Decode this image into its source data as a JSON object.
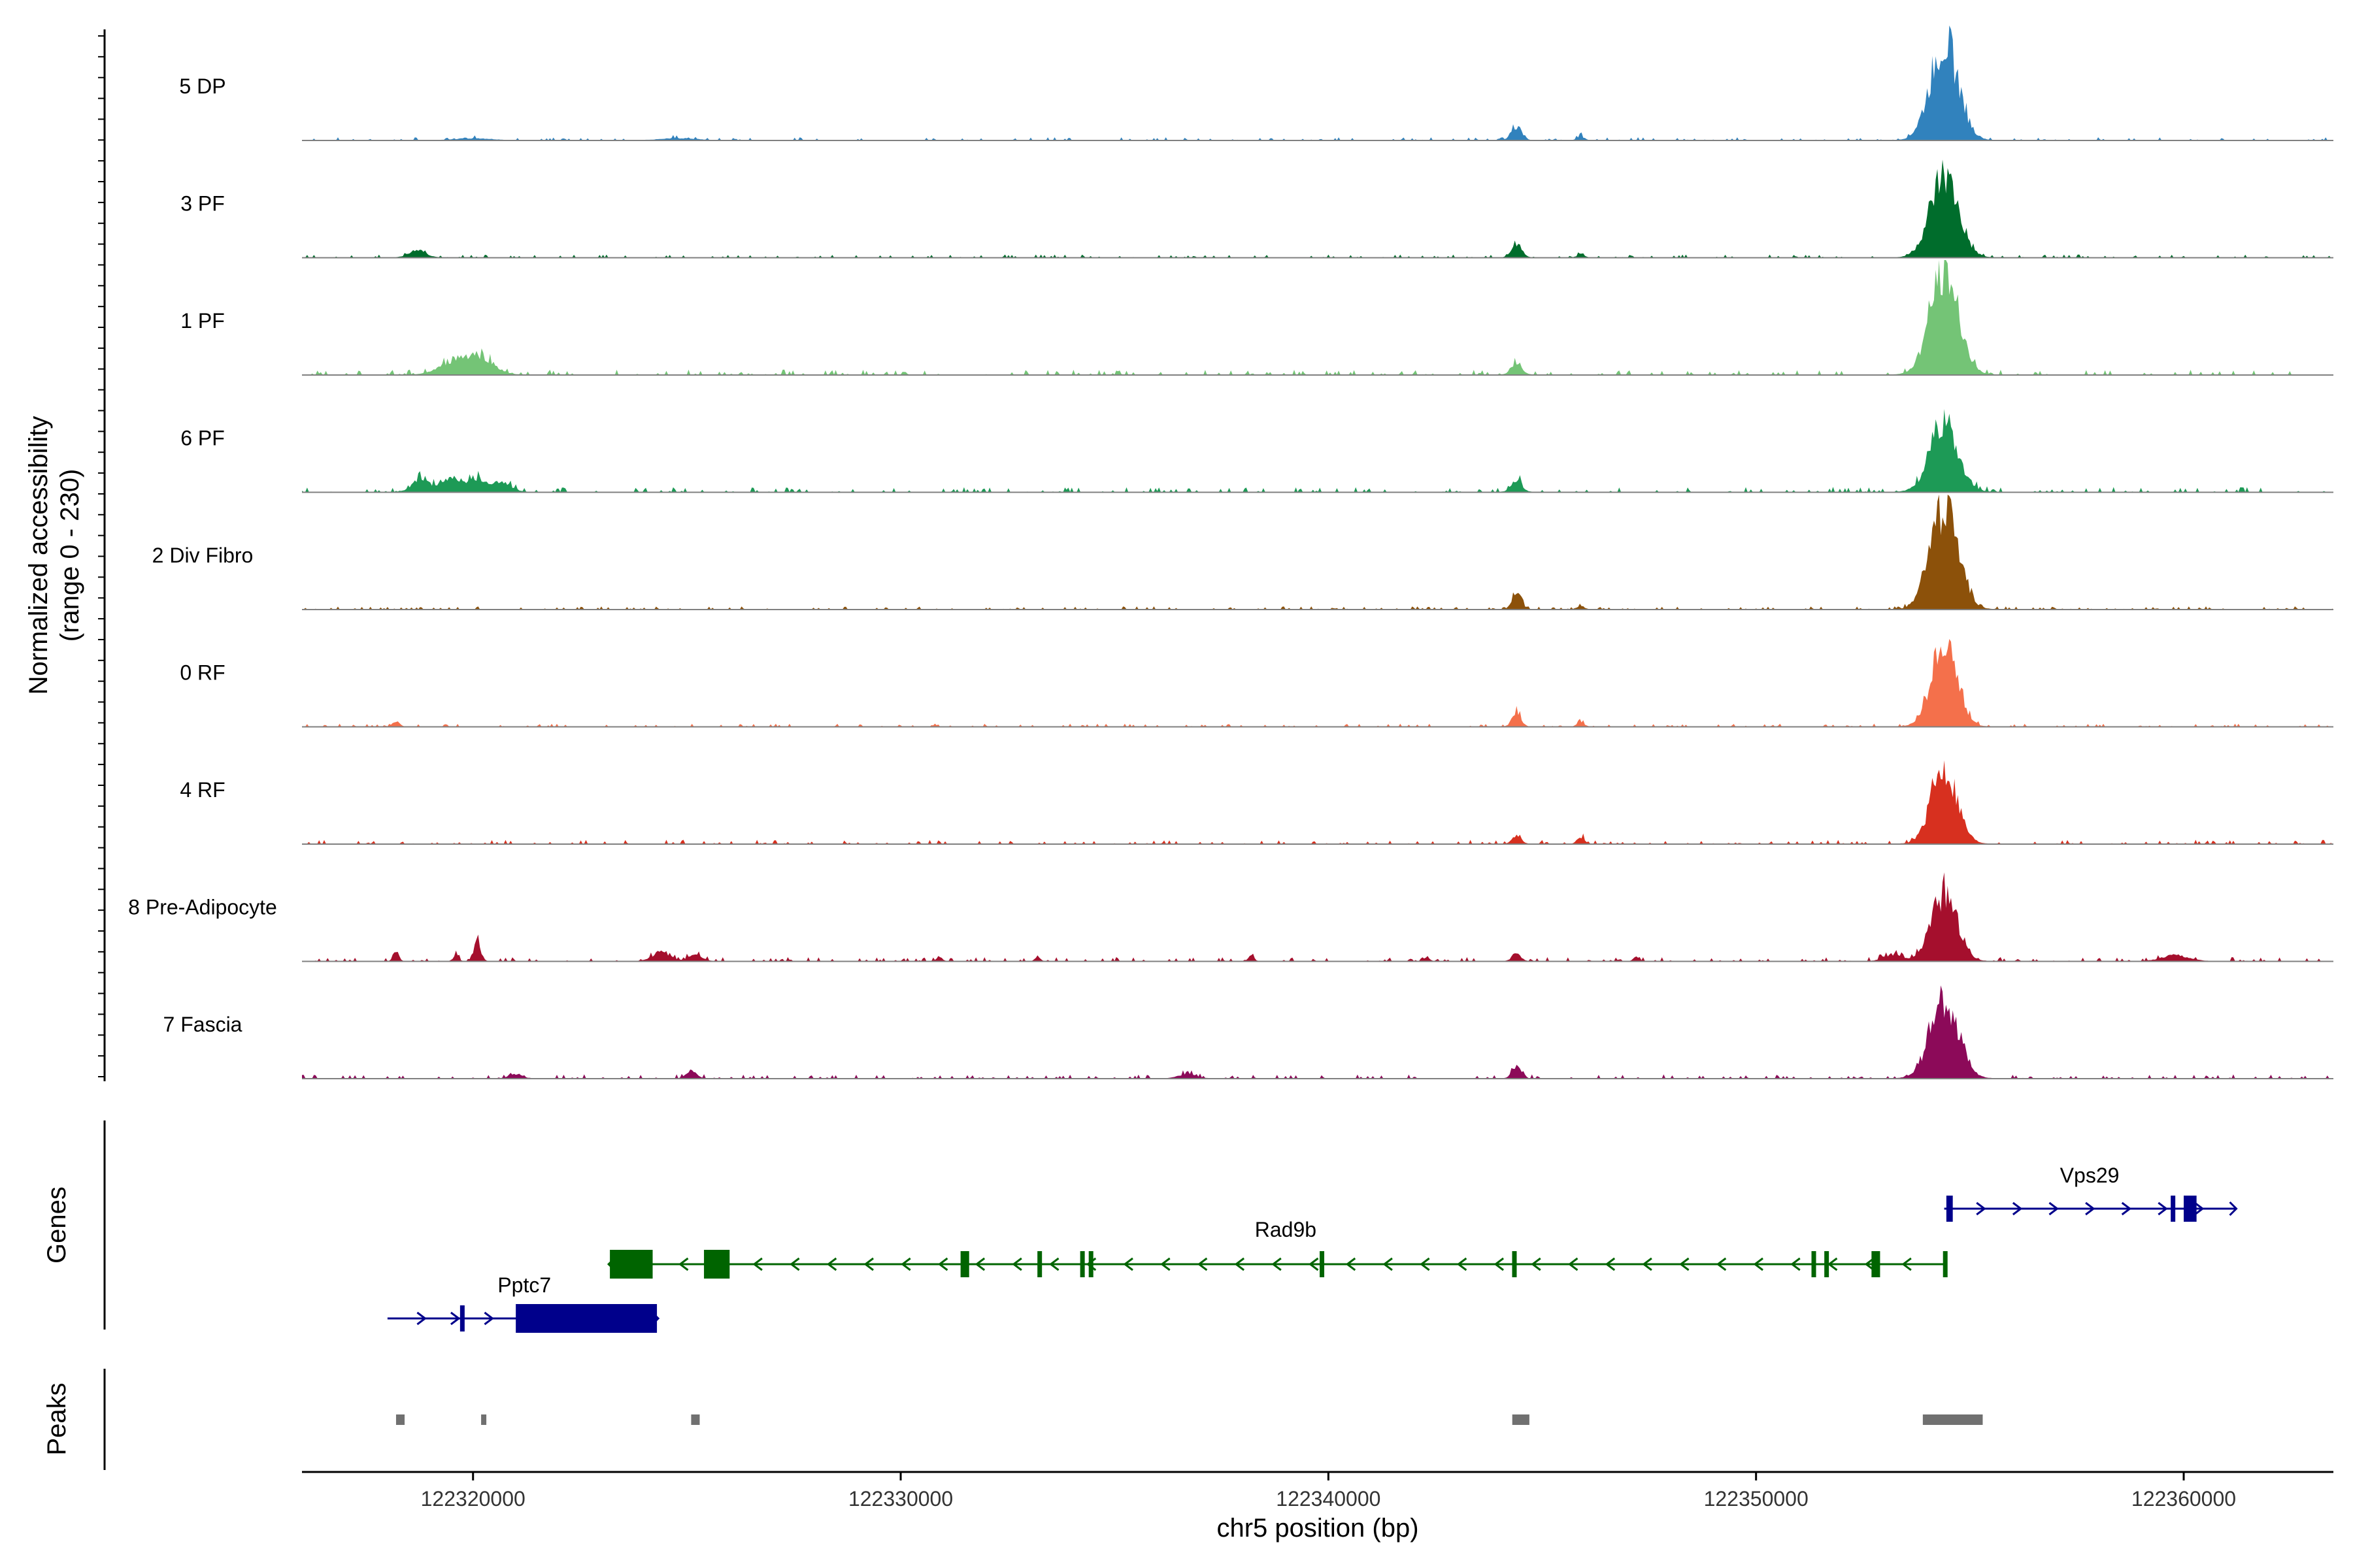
{
  "chart_data": {
    "type": "area",
    "title": "",
    "genome": "chr5",
    "xlabel": "chr5 position (bp)",
    "xlim": [
      122316000,
      122363500
    ],
    "xticks": [
      122320000,
      122330000,
      122340000,
      122350000,
      122360000
    ],
    "xtick_labels": [
      "122320000",
      "122330000",
      "122340000",
      "122350000",
      "122360000"
    ],
    "coverage": {
      "ylabel_line1": "Normalized accessibility",
      "ylabel_line2": "(range 0 - 230)",
      "ylim": [
        0,
        230
      ],
      "tracks": [
        {
          "name": "5 DP",
          "color": "#3182bd",
          "peaks": [
            [
              122354400,
              190,
              330
            ],
            [
              122344400,
              28,
              120
            ],
            [
              122345900,
              8,
              80
            ],
            [
              122320000,
              4,
              400
            ],
            [
              122324800,
              4,
              400
            ]
          ],
          "noise": 3
        },
        {
          "name": "3 PF",
          "color": "#006d2c",
          "peaks": [
            [
              122354400,
              160,
              330
            ],
            [
              122344400,
              24,
              120
            ],
            [
              122318700,
              14,
              200
            ],
            [
              122345900,
              7,
              80
            ]
          ],
          "noise": 3
        },
        {
          "name": "1 PF",
          "color": "#74c476",
          "peaks": [
            [
              122354400,
              205,
              330
            ],
            [
              122319600,
              28,
              350
            ],
            [
              122320200,
              32,
              300
            ],
            [
              122344400,
              26,
              120
            ]
          ],
          "noise": 5
        },
        {
          "name": "6 PF",
          "color": "#1d9a56",
          "peaks": [
            [
              122354400,
              130,
              330
            ],
            [
              122318800,
              28,
              200
            ],
            [
              122319500,
              28,
              200
            ],
            [
              122320100,
              26,
              250
            ],
            [
              122320700,
              18,
              200
            ],
            [
              122344400,
              24,
              120
            ]
          ],
          "noise": 5
        },
        {
          "name": "2 Div Fibro",
          "color": "#8c510a",
          "peaks": [
            [
              122354400,
              200,
              330
            ],
            [
              122344400,
              40,
              100
            ],
            [
              122345900,
              7,
              80
            ]
          ],
          "noise": 3
        },
        {
          "name": "0 RF",
          "color": "#f4704b",
          "peaks": [
            [
              122354400,
              160,
              300
            ],
            [
              122344400,
              30,
              100
            ],
            [
              122345900,
              10,
              80
            ],
            [
              122318200,
              10,
              80
            ]
          ],
          "noise": 3
        },
        {
          "name": "4 RF",
          "color": "#d7301f",
          "peaks": [
            [
              122354400,
              150,
              300
            ],
            [
              122344400,
              18,
              100
            ],
            [
              122345900,
              14,
              80
            ]
          ],
          "noise": 4
        },
        {
          "name": "8 Pre-Adipocyte",
          "color": "#a50f2d",
          "peaks": [
            [
              122354400,
              135,
              300
            ],
            [
              122318200,
              22,
              60
            ],
            [
              122320100,
              38,
              80
            ],
            [
              122319600,
              12,
              60
            ],
            [
              122324400,
              18,
              200
            ],
            [
              122325200,
              14,
              150
            ],
            [
              122344400,
              16,
              100
            ],
            [
              122353200,
              14,
              200
            ],
            [
              122359800,
              12,
              300
            ],
            [
              122338200,
              12,
              60
            ],
            [
              122333200,
              8,
              60
            ],
            [
              122330900,
              10,
              60
            ],
            [
              122342300,
              9,
              60
            ],
            [
              122347200,
              10,
              60
            ]
          ],
          "noise": 4
        },
        {
          "name": "7 Fascia",
          "color": "#8c0a59",
          "peaks": [
            [
              122354400,
              155,
              330
            ],
            [
              122344400,
              26,
              100
            ],
            [
              122325100,
              14,
              120
            ],
            [
              122321000,
              8,
              150
            ],
            [
              122336700,
              8,
              200
            ]
          ],
          "noise": 4
        }
      ]
    },
    "genes": {
      "ylabel": "Genes",
      "items": [
        {
          "name": "Pptc7",
          "strand": "+",
          "color": "#00008b",
          "row": 3,
          "start": 122318000,
          "end": 122324300,
          "exons": [
            [
              122319700,
              122319800
            ],
            [
              122321000,
              122324300
            ]
          ]
        },
        {
          "name": "Rad9b",
          "strand": "-",
          "color": "#006400",
          "row": 2,
          "start": 122323200,
          "end": 122354400,
          "exons": [
            [
              122323200,
              122324200
            ],
            [
              122325400,
              122326000
            ],
            [
              122331400,
              122331600
            ],
            [
              122333200,
              122333300
            ],
            [
              122334200,
              122334300
            ],
            [
              122334400,
              122334500
            ],
            [
              122339800,
              122339900
            ],
            [
              122344300,
              122344400
            ],
            [
              122351300,
              122351400
            ],
            [
              122351600,
              122351700
            ],
            [
              122352700,
              122352900
            ],
            [
              122354400,
              122354450
            ]
          ]
        },
        {
          "name": "Vps29",
          "strand": "+",
          "color": "#00008b",
          "row": 1,
          "start": 122354400,
          "end": 122361200,
          "exons": [
            [
              122354450,
              122354600
            ],
            [
              122359700,
              122359800
            ],
            [
              122360000,
              122360300
            ]
          ]
        }
      ]
    },
    "peaks": {
      "ylabel": "Peaks",
      "color": "#707070",
      "regions": [
        [
          122318200,
          122318400
        ],
        [
          122320200,
          122320300
        ],
        [
          122325100,
          122325300
        ],
        [
          122344300,
          122344700
        ],
        [
          122353900,
          122355300
        ]
      ]
    }
  }
}
